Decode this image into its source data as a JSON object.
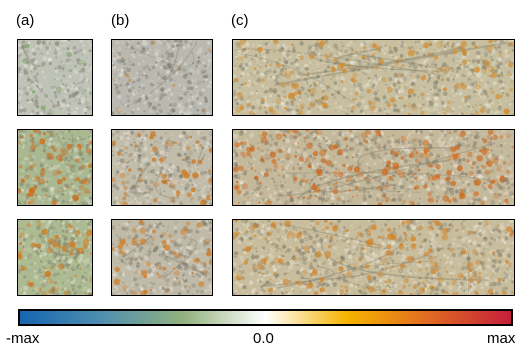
{
  "panels": {
    "a": {
      "label": "(a)"
    },
    "b": {
      "label": "(b)"
    },
    "c": {
      "label": "(c)"
    }
  },
  "colorbar": {
    "colors": [
      "#1565b0",
      "#4f8fb0",
      "#93b27e",
      "#ffffff",
      "#f5b400",
      "#e06a22",
      "#c41f3a"
    ],
    "min_label": "-max",
    "mid_label": "0.0",
    "max_label": "max"
  },
  "tiles": [
    {
      "name": "tile-a-row1",
      "base": "#bfc2b6",
      "overlay": "#7ea56a",
      "intensity": 0.2
    },
    {
      "name": "tile-b-row1",
      "base": "#b9b9b1",
      "overlay": "#c98a3a",
      "intensity": 0.1
    },
    {
      "name": "tile-c-row1",
      "base": "#c7bf9f",
      "overlay": "#d38a2a",
      "intensity": 0.55
    },
    {
      "name": "tile-a-row2",
      "base": "#a9b891",
      "overlay": "#d06b16",
      "intensity": 0.85
    },
    {
      "name": "tile-b-row2",
      "base": "#c2bcaa",
      "overlay": "#d0761c",
      "intensity": 0.6
    },
    {
      "name": "tile-c-row2",
      "base": "#c5b99b",
      "overlay": "#cf6b1f",
      "intensity": 0.7
    },
    {
      "name": "tile-a-row3",
      "base": "#adbb93",
      "overlay": "#d3761a",
      "intensity": 0.75
    },
    {
      "name": "tile-b-row3",
      "base": "#c0baa8",
      "overlay": "#d07a20",
      "intensity": 0.55
    },
    {
      "name": "tile-c-row3",
      "base": "#c8bd9c",
      "overlay": "#d2842a",
      "intensity": 0.6
    }
  ]
}
